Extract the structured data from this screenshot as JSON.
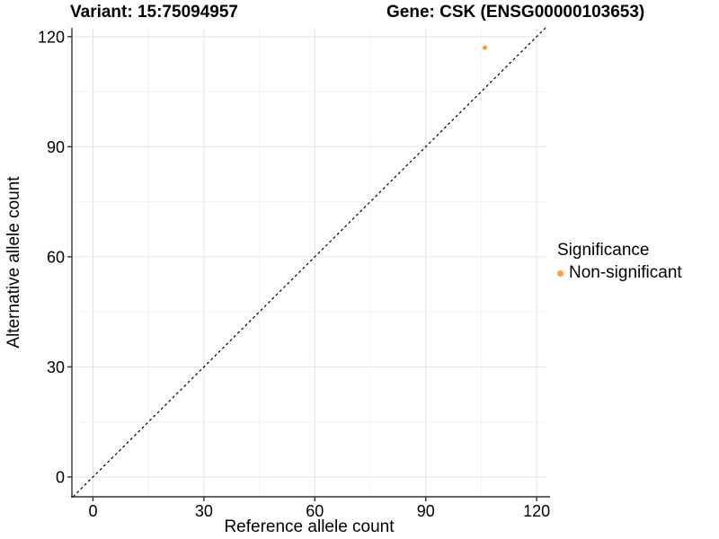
{
  "chart_data": {
    "type": "scatter",
    "titles": {
      "left": "Variant: 15:75094957",
      "right": "Gene: CSK (ENSG00000103653)"
    },
    "xlabel": "Reference allele count",
    "ylabel": "Alternative allele count",
    "x_ticks": [
      0,
      30,
      60,
      90,
      120
    ],
    "y_ticks": [
      0,
      30,
      60,
      90,
      120
    ],
    "x_minor_ticks": [
      15,
      45,
      75,
      105
    ],
    "y_minor_ticks": [
      15,
      45,
      75,
      105
    ],
    "xlim": [
      -5.7,
      122.4
    ],
    "ylim": [
      -5.4,
      122.4
    ],
    "grid": true,
    "series": [
      {
        "name": "Non-significant",
        "color": "#F9A232",
        "points": [
          {
            "x": 106,
            "y": 117
          }
        ]
      }
    ],
    "reference_line": {
      "kind": "abline",
      "slope": 1,
      "intercept": 0,
      "line_style": "dashed",
      "color": "#000000"
    },
    "legend": {
      "title": "Significance",
      "position": "right",
      "entries": [
        {
          "label": "Non-significant",
          "color": "#F9A232"
        }
      ]
    },
    "colors": {
      "background": "#FFFFFF",
      "grid_major": "#E5E5E5",
      "grid_minor": "#F2F2F2",
      "axis_line": "#333333",
      "text": "#000000"
    }
  }
}
